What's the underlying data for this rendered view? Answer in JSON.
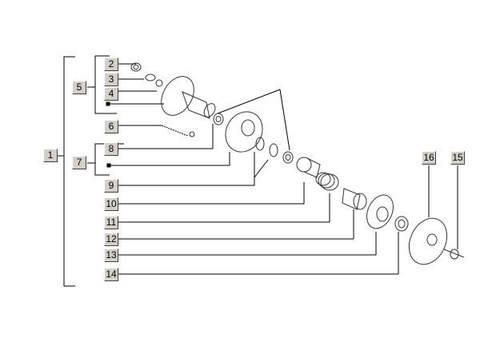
{
  "callouts": [
    {
      "id": "1",
      "label": "1"
    },
    {
      "id": "2",
      "label": "2"
    },
    {
      "id": "3",
      "label": "3"
    },
    {
      "id": "4",
      "label": "4"
    },
    {
      "id": "5",
      "label": "5"
    },
    {
      "id": "6",
      "label": "6"
    },
    {
      "id": "7",
      "label": "7"
    },
    {
      "id": "8",
      "label": "8"
    },
    {
      "id": "9",
      "label": "9"
    },
    {
      "id": "10",
      "label": "10"
    },
    {
      "id": "11",
      "label": "11"
    },
    {
      "id": "12",
      "label": "12"
    },
    {
      "id": "13",
      "label": "13"
    },
    {
      "id": "14",
      "label": "14"
    },
    {
      "id": "15",
      "label": "15"
    },
    {
      "id": "16",
      "label": "16"
    }
  ],
  "colors": {
    "button_face": "#d4d0c8",
    "line": "#000000",
    "part_stroke": "#333333"
  }
}
